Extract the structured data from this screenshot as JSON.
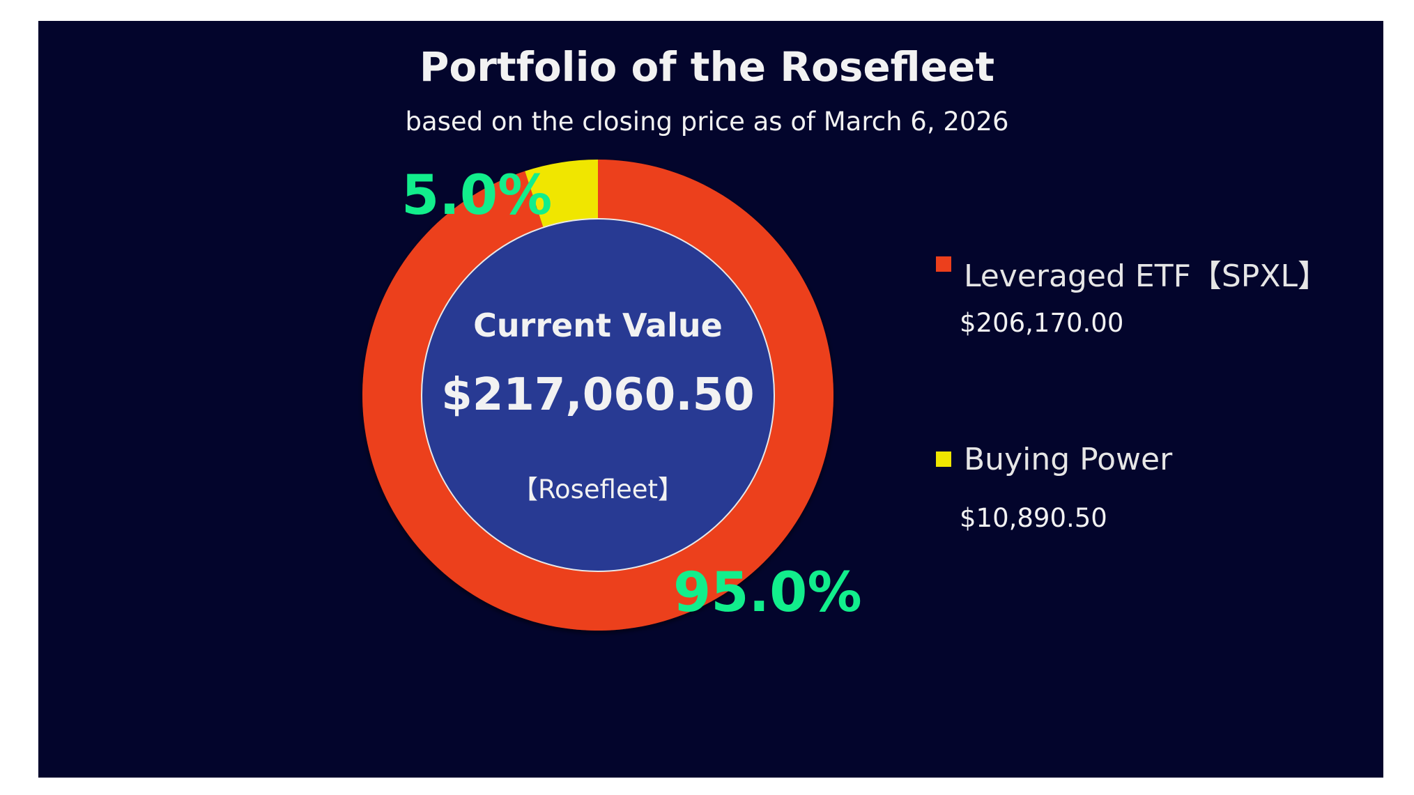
{
  "chart_data": {
    "type": "pie",
    "subtype": "donut",
    "title": "Portfolio of the Rosefleet",
    "subtitle": "based on the closing price as of March 6, 2026",
    "legend_position": "right",
    "slices": [
      {
        "name": "Leveraged ETF【SPXL】",
        "value": 206170.0,
        "value_label": "$206,170.00",
        "percent": 95.0,
        "percent_label": "95.0%",
        "color": "#ec3f1c"
      },
      {
        "name": "Buying Power",
        "value": 10890.5,
        "value_label": "$10,890.50",
        "percent": 5.0,
        "percent_label": "5.0%",
        "color": "#f0e600"
      }
    ],
    "center": {
      "heading": "Current Value",
      "total": "$217,060.50",
      "caption": "【Rosefleet】",
      "color": "#283a93"
    }
  },
  "colors": {
    "background": "#03052c",
    "percent_label": "#12ee8c"
  }
}
